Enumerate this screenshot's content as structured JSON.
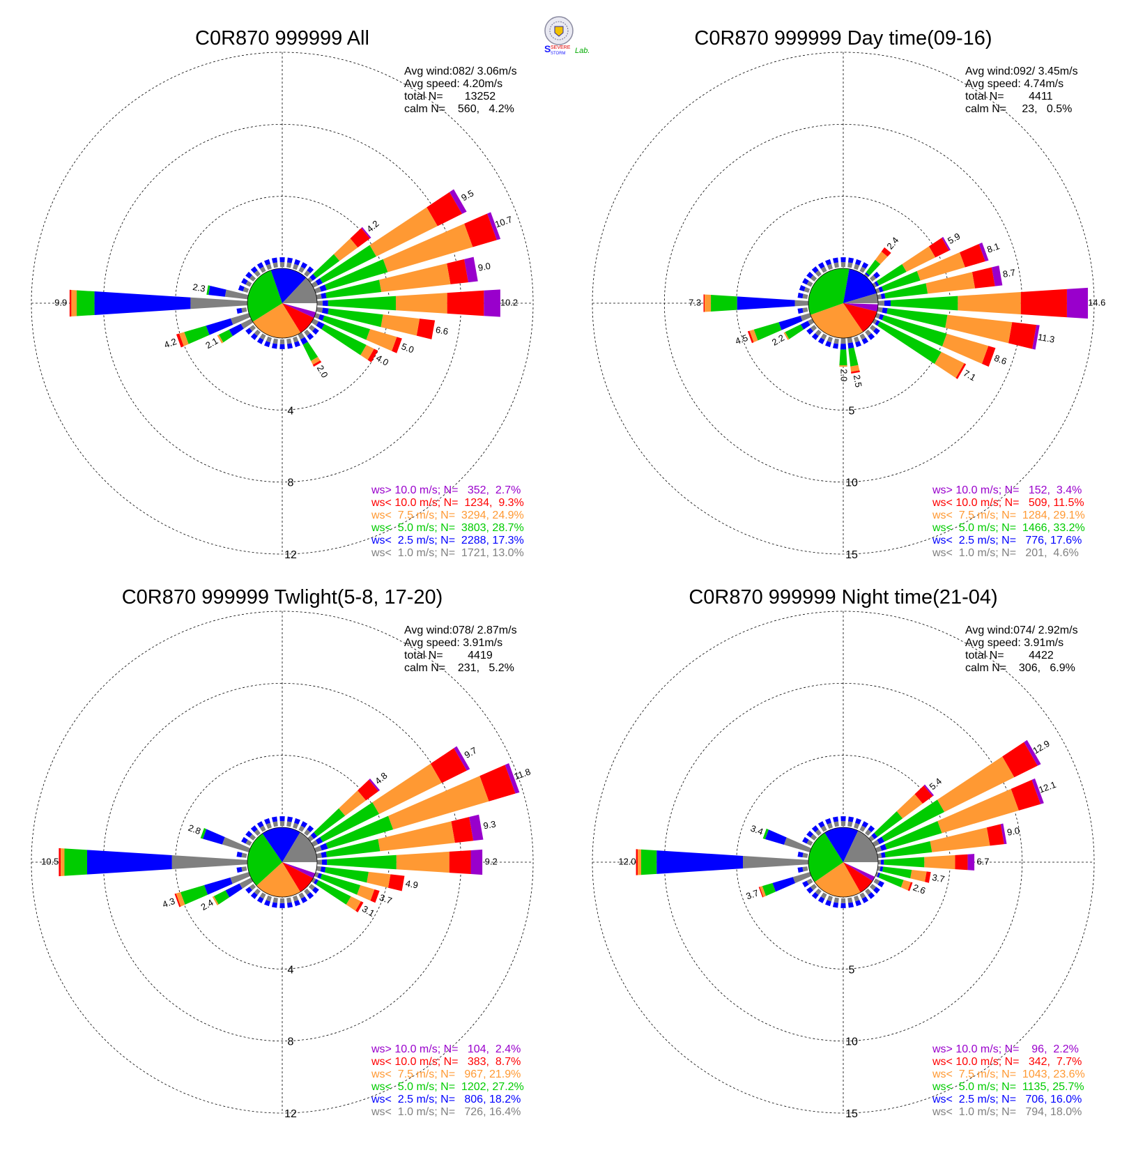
{
  "logo": {
    "text_severe": "SEVERE",
    "text_storm": "STORM",
    "text_lab": "Lab."
  },
  "colors": {
    "calm": "#ffffff",
    "gt10": "#9900cc",
    "lt10": "#ff0000",
    "lt7_5": "#ff9933",
    "lt5": "#00cc00",
    "lt2_5": "#0000ff",
    "lt1": "#808080"
  },
  "chart_data": [
    {
      "type": "wind-rose",
      "title": "C0R870 999999 All",
      "rmax": 12,
      "rings": [
        4,
        8,
        12
      ],
      "ring_labels": [
        "4",
        "8",
        "12"
      ],
      "stats": [
        "Avg wind:082/ 3.06m/s",
        "Avg speed: 4.20m/s",
        "total N=       13252",
        "calm N=    560,   4.2%"
      ],
      "legend": [
        {
          "label": "ws> 10.0 m/s; N=   352,  2.7%",
          "class": "gt10"
        },
        {
          "label": "ws< 10.0 m/s; N=  1234,  9.3%",
          "class": "lt10"
        },
        {
          "label": "ws<  7.5 m/s; N=  3294, 24.9%",
          "class": "lt7_5"
        },
        {
          "label": "ws<  5.0 m/s; N=  3803, 28.7%",
          "class": "lt5"
        },
        {
          "label": "ws<  2.5 m/s; N=  2288, 17.3%",
          "class": "lt2_5"
        },
        {
          "label": "ws<  1.0 m/s; N=  1721, 13.0%",
          "class": "lt1"
        }
      ],
      "pie": [
        4.2,
        2.7,
        9.3,
        24.9,
        28.7,
        17.3,
        13.0
      ],
      "petals": [
        {
          "dir": 50,
          "total": 4.2,
          "label": "4.2",
          "f": [
            0.02,
            0.2,
            0.3,
            0.38,
            0.06,
            0.04
          ]
        },
        {
          "dir": 60,
          "total": 9.5,
          "label": "9.5",
          "f": [
            0.03,
            0.16,
            0.4,
            0.35,
            0.03,
            0.03
          ]
        },
        {
          "dir": 70,
          "total": 10.7,
          "label": "10.7",
          "f": [
            0.02,
            0.13,
            0.46,
            0.33,
            0.03,
            0.03
          ]
        },
        {
          "dir": 80,
          "total": 9.0,
          "label": "9.0",
          "f": [
            0.06,
            0.11,
            0.43,
            0.34,
            0.03,
            0.03
          ]
        },
        {
          "dir": 90,
          "total": 10.2,
          "label": "10.2",
          "f": [
            0.09,
            0.2,
            0.28,
            0.37,
            0.03,
            0.03
          ]
        },
        {
          "dir": 100,
          "total": 6.6,
          "label": "6.6",
          "f": [
            0.0,
            0.13,
            0.31,
            0.46,
            0.05,
            0.05
          ]
        },
        {
          "dir": 110,
          "total": 5.0,
          "label": "5.0",
          "f": [
            0.0,
            0.06,
            0.31,
            0.53,
            0.05,
            0.05
          ]
        },
        {
          "dir": 120,
          "total": 4.0,
          "label": "4.0",
          "f": [
            0.0,
            0.06,
            0.12,
            0.65,
            0.09,
            0.08
          ]
        },
        {
          "dir": 150,
          "total": 2.0,
          "label": "2.0",
          "f": [
            0.0,
            0.06,
            0.12,
            0.5,
            0.16,
            0.16
          ]
        },
        {
          "dir": 240,
          "total": 2.1,
          "label": "2.1",
          "f": [
            0.0,
            0.0,
            0.05,
            0.3,
            0.35,
            0.3
          ]
        },
        {
          "dir": 250,
          "total": 4.2,
          "label": "4.2",
          "f": [
            0.0,
            0.04,
            0.07,
            0.3,
            0.34,
            0.25
          ]
        },
        {
          "dir": 270,
          "total": 9.9,
          "label": "9.9",
          "f": [
            0.0,
            0.01,
            0.03,
            0.1,
            0.54,
            0.32
          ]
        },
        {
          "dir": 280,
          "total": 2.3,
          "label": "2.3",
          "f": [
            0.0,
            0.0,
            0.0,
            0.05,
            0.4,
            0.55
          ]
        }
      ]
    },
    {
      "type": "wind-rose",
      "title": "C0R870 999999 Day time(09-16)",
      "rmax": 15,
      "rings": [
        5,
        10,
        15
      ],
      "ring_labels": [
        "5",
        "10",
        "15"
      ],
      "stats": [
        "Avg wind:092/ 3.45m/s",
        "Avg speed: 4.74m/s",
        "total N=        4411",
        "calm N=     23,   0.5%"
      ],
      "legend": [
        {
          "label": "ws> 10.0 m/s; N=   152,  3.4%",
          "class": "gt10"
        },
        {
          "label": "ws< 10.0 m/s; N=   509, 11.5%",
          "class": "lt10"
        },
        {
          "label": "ws<  7.5 m/s; N=  1284, 29.1%",
          "class": "lt7_5"
        },
        {
          "label": "ws<  5.0 m/s; N=  1466, 33.2%",
          "class": "lt5"
        },
        {
          "label": "ws<  2.5 m/s; N=   776, 17.6%",
          "class": "lt2_5"
        },
        {
          "label": "ws<  1.0 m/s; N=   201,  4.6%",
          "class": "lt1"
        }
      ],
      "pie": [
        0.5,
        3.4,
        11.5,
        29.1,
        33.2,
        17.6,
        4.6
      ],
      "petals": [
        {
          "dir": 40,
          "total": 2.4,
          "label": "2.4",
          "f": [
            0.0,
            0.15,
            0.3,
            0.45,
            0.05,
            0.05
          ]
        },
        {
          "dir": 60,
          "total": 5.9,
          "label": "5.9",
          "f": [
            0.02,
            0.18,
            0.38,
            0.36,
            0.03,
            0.03
          ]
        },
        {
          "dir": 70,
          "total": 8.1,
          "label": "8.1",
          "f": [
            0.03,
            0.18,
            0.4,
            0.33,
            0.03,
            0.03
          ]
        },
        {
          "dir": 80,
          "total": 8.7,
          "label": "8.7",
          "f": [
            0.06,
            0.16,
            0.38,
            0.34,
            0.03,
            0.03
          ]
        },
        {
          "dir": 90,
          "total": 14.6,
          "label": "14.6",
          "f": [
            0.1,
            0.22,
            0.3,
            0.32,
            0.03,
            0.03
          ]
        },
        {
          "dir": 100,
          "total": 11.3,
          "label": "11.3",
          "f": [
            0.02,
            0.15,
            0.4,
            0.37,
            0.03,
            0.03
          ]
        },
        {
          "dir": 110,
          "total": 8.6,
          "label": "8.6",
          "f": [
            0.0,
            0.06,
            0.35,
            0.53,
            0.03,
            0.03
          ]
        },
        {
          "dir": 120,
          "total": 7.1,
          "label": "7.1",
          "f": [
            0.0,
            0.02,
            0.25,
            0.67,
            0.03,
            0.03
          ]
        },
        {
          "dir": 170,
          "total": 2.5,
          "label": "2.5",
          "f": [
            0.0,
            0.05,
            0.15,
            0.5,
            0.15,
            0.15
          ]
        },
        {
          "dir": 180,
          "total": 2.0,
          "label": "2.0",
          "f": [
            0.0,
            0.0,
            0.05,
            0.55,
            0.2,
            0.2
          ]
        },
        {
          "dir": 240,
          "total": 2.2,
          "label": "2.2",
          "f": [
            0.0,
            0.0,
            0.05,
            0.55,
            0.25,
            0.15
          ]
        },
        {
          "dir": 250,
          "total": 4.5,
          "label": "4.5",
          "f": [
            0.0,
            0.03,
            0.07,
            0.4,
            0.35,
            0.15
          ]
        },
        {
          "dir": 270,
          "total": 7.3,
          "label": "7.3",
          "f": [
            0.0,
            0.01,
            0.06,
            0.25,
            0.55,
            0.13
          ]
        }
      ]
    },
    {
      "type": "wind-rose",
      "title": "C0R870 999999 Twlight(5-8, 17-20)",
      "rmax": 12,
      "rings": [
        4,
        8,
        12
      ],
      "ring_labels": [
        "4",
        "8",
        "12"
      ],
      "stats": [
        "Avg wind:078/ 2.87m/s",
        "Avg speed: 3.91m/s",
        "total N=        4419",
        "calm N=    231,   5.2%"
      ],
      "legend": [
        {
          "label": "ws> 10.0 m/s; N=   104,  2.4%",
          "class": "gt10"
        },
        {
          "label": "ws< 10.0 m/s; N=   383,  8.7%",
          "class": "lt10"
        },
        {
          "label": "ws<  7.5 m/s; N=   967, 21.9%",
          "class": "lt7_5"
        },
        {
          "label": "ws<  5.0 m/s; N=  1202, 27.2%",
          "class": "lt5"
        },
        {
          "label": "ws<  2.5 m/s; N=   806, 18.2%",
          "class": "lt2_5"
        },
        {
          "label": "ws<  1.0 m/s; N=   726, 16.4%",
          "class": "lt1"
        }
      ],
      "pie": [
        5.2,
        2.4,
        8.7,
        21.9,
        27.2,
        18.2,
        16.4
      ],
      "petals": [
        {
          "dir": 50,
          "total": 4.8,
          "label": "4.8",
          "f": [
            0.02,
            0.18,
            0.3,
            0.4,
            0.05,
            0.05
          ]
        },
        {
          "dir": 60,
          "total": 9.7,
          "label": "9.7",
          "f": [
            0.02,
            0.16,
            0.4,
            0.36,
            0.03,
            0.03
          ]
        },
        {
          "dir": 70,
          "total": 11.8,
          "label": "11.8",
          "f": [
            0.02,
            0.13,
            0.47,
            0.32,
            0.03,
            0.03
          ]
        },
        {
          "dir": 80,
          "total": 9.3,
          "label": "9.3",
          "f": [
            0.06,
            0.11,
            0.45,
            0.32,
            0.03,
            0.03
          ]
        },
        {
          "dir": 90,
          "total": 9.2,
          "label": "9.2",
          "f": [
            0.07,
            0.13,
            0.32,
            0.42,
            0.03,
            0.03
          ]
        },
        {
          "dir": 100,
          "total": 4.9,
          "label": "4.9",
          "f": [
            0.0,
            0.16,
            0.25,
            0.49,
            0.05,
            0.05
          ]
        },
        {
          "dir": 110,
          "total": 3.7,
          "label": "3.7",
          "f": [
            0.0,
            0.08,
            0.22,
            0.6,
            0.05,
            0.05
          ]
        },
        {
          "dir": 120,
          "total": 3.1,
          "label": "3.1",
          "f": [
            0.0,
            0.05,
            0.2,
            0.65,
            0.05,
            0.05
          ]
        },
        {
          "dir": 240,
          "total": 2.4,
          "label": "2.4",
          "f": [
            0.0,
            0.0,
            0.04,
            0.3,
            0.36,
            0.3
          ]
        },
        {
          "dir": 250,
          "total": 4.3,
          "label": "4.3",
          "f": [
            0.0,
            0.02,
            0.06,
            0.32,
            0.35,
            0.25
          ]
        },
        {
          "dir": 270,
          "total": 10.5,
          "label": "10.5",
          "f": [
            0.0,
            0.01,
            0.02,
            0.12,
            0.45,
            0.4
          ]
        },
        {
          "dir": 290,
          "total": 2.8,
          "label": "2.8",
          "f": [
            0.0,
            0.0,
            0.0,
            0.05,
            0.4,
            0.55
          ]
        }
      ]
    },
    {
      "type": "wind-rose",
      "title": "C0R870 999999 Night time(21-04)",
      "rmax": 15,
      "rings": [
        5,
        10,
        15
      ],
      "ring_labels": [
        "5",
        "10",
        "15"
      ],
      "stats": [
        "Avg wind:074/ 2.92m/s",
        "Avg speed: 3.91m/s",
        "total N=        4422",
        "calm N=    306,   6.9%"
      ],
      "legend": [
        {
          "label": "ws> 10.0 m/s; N=    96,  2.2%",
          "class": "gt10"
        },
        {
          "label": "ws< 10.0 m/s; N=   342,  7.7%",
          "class": "lt10"
        },
        {
          "label": "ws<  7.5 m/s; N=  1043, 23.6%",
          "class": "lt7_5"
        },
        {
          "label": "ws<  5.0 m/s; N=  1135, 25.7%",
          "class": "lt5"
        },
        {
          "label": "ws<  2.5 m/s; N=   706, 16.0%",
          "class": "lt2_5"
        },
        {
          "label": "ws<  1.0 m/s; N=   794, 18.0%",
          "class": "lt1"
        }
      ],
      "pie": [
        6.9,
        2.2,
        7.7,
        23.6,
        25.7,
        16.0,
        18.0
      ],
      "petals": [
        {
          "dir": 50,
          "total": 5.4,
          "label": "5.4",
          "f": [
            0.02,
            0.16,
            0.32,
            0.4,
            0.05,
            0.05
          ]
        },
        {
          "dir": 60,
          "total": 12.9,
          "label": "12.9",
          "f": [
            0.02,
            0.14,
            0.42,
            0.36,
            0.03,
            0.03
          ]
        },
        {
          "dir": 70,
          "total": 12.1,
          "label": "12.1",
          "f": [
            0.02,
            0.13,
            0.46,
            0.33,
            0.03,
            0.03
          ]
        },
        {
          "dir": 80,
          "total": 9.0,
          "label": "9.0",
          "f": [
            0.02,
            0.11,
            0.45,
            0.36,
            0.03,
            0.03
          ]
        },
        {
          "dir": 90,
          "total": 6.7,
          "label": "6.7",
          "f": [
            0.07,
            0.13,
            0.32,
            0.42,
            0.03,
            0.03
          ]
        },
        {
          "dir": 100,
          "total": 3.7,
          "label": "3.7",
          "f": [
            0.0,
            0.08,
            0.28,
            0.54,
            0.05,
            0.05
          ]
        },
        {
          "dir": 110,
          "total": 2.6,
          "label": "2.6",
          "f": [
            0.0,
            0.05,
            0.2,
            0.65,
            0.05,
            0.05
          ]
        },
        {
          "dir": 250,
          "total": 3.7,
          "label": "3.7",
          "f": [
            0.0,
            0.02,
            0.05,
            0.2,
            0.4,
            0.33
          ]
        },
        {
          "dir": 270,
          "total": 12.0,
          "label": "12.0",
          "f": [
            0.0,
            0.01,
            0.02,
            0.09,
            0.5,
            0.38
          ]
        },
        {
          "dir": 290,
          "total": 3.4,
          "label": "3.4",
          "f": [
            0.0,
            0.0,
            0.0,
            0.05,
            0.4,
            0.55
          ]
        }
      ]
    }
  ]
}
